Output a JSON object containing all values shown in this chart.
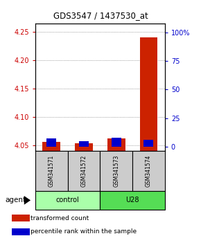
{
  "title": "GDS3547 / 1437530_at",
  "samples": [
    "GSM341571",
    "GSM341572",
    "GSM341573",
    "GSM341574"
  ],
  "transformed_counts": [
    4.055,
    4.053,
    4.062,
    4.24
  ],
  "percentile_ranks": [
    7,
    5,
    8,
    6
  ],
  "ylim_left": [
    4.04,
    4.265
  ],
  "yticks_left": [
    4.05,
    4.1,
    4.15,
    4.2,
    4.25
  ],
  "ylim_right": [
    -3.5,
    108
  ],
  "yticks_right": [
    0,
    25,
    50,
    75,
    100
  ],
  "yticklabels_right": [
    "0",
    "25",
    "50",
    "75",
    "100%"
  ],
  "left_tick_color": "#cc0000",
  "right_tick_color": "#0000cc",
  "red_bar_color": "#cc2200",
  "blue_bar_color": "#0000cc",
  "control_color": "#aaffaa",
  "u28_color": "#55dd55",
  "sample_box_color": "#cccccc",
  "legend_red_label": "transformed count",
  "legend_blue_label": "percentile rank within the sample",
  "agent_label": "agent",
  "background_color": "#ffffff"
}
